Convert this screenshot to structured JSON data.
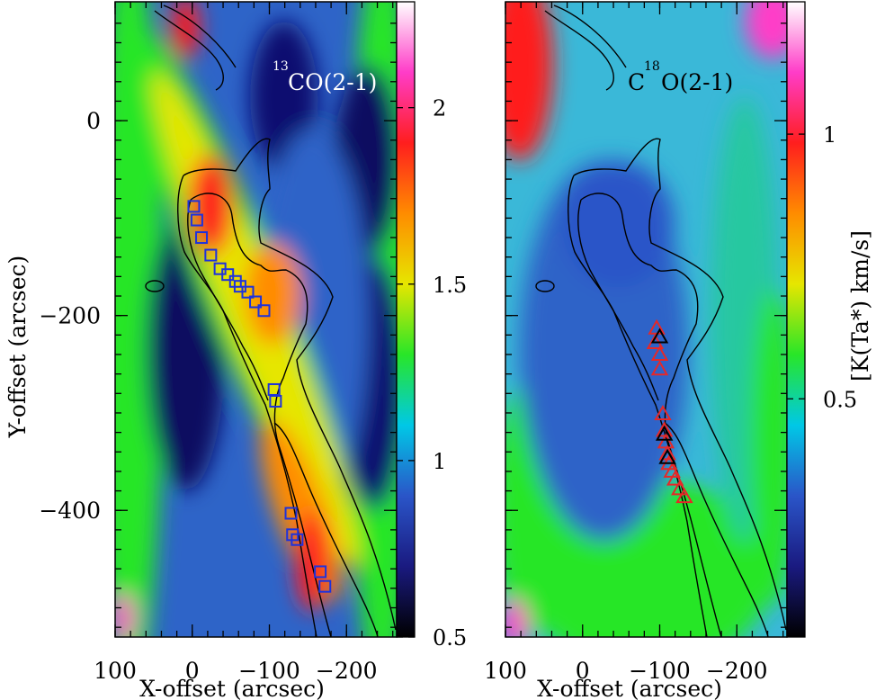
{
  "chart_data": [
    {
      "type": "heatmap",
      "title": "13CO(2-1)",
      "title_main": "CO(2-1)",
      "title_sup": "13",
      "xlabel": "X-offset (arcsec)",
      "ylabel": "Y-offset (arcsec)",
      "xlim": [
        100,
        -265
      ],
      "ylim": [
        -530,
        122
      ],
      "x_ticks": [
        100,
        0,
        -100,
        -200
      ],
      "x_tick_labels": [
        "100",
        "0",
        "−100",
        "−200"
      ],
      "y_ticks": [
        0,
        -200,
        -400
      ],
      "y_tick_labels": [
        "0",
        "−200",
        "−400"
      ],
      "colorbar": {
        "range": [
          0.5,
          2.3
        ],
        "ticks": [
          0.5,
          1,
          1.5,
          2
        ],
        "tick_labels": [
          "0.5",
          "1",
          "1.5",
          "2"
        ],
        "label": ""
      },
      "color_stops": [
        "#000000",
        "#1a1a80",
        "#2a55c8",
        "#00c8e6",
        "#28e628",
        "#e6e600",
        "#ff8c00",
        "#ff1e1e",
        "#ff3cc8",
        "#ffffff"
      ],
      "markers": {
        "symbol": "square",
        "color": "#1e32dc",
        "points": [
          [
            -2,
            -88
          ],
          [
            -6,
            -102
          ],
          [
            -12,
            -120
          ],
          [
            -24,
            -138
          ],
          [
            -36,
            -152
          ],
          [
            -46,
            -158
          ],
          [
            -56,
            -165
          ],
          [
            -62,
            -170
          ],
          [
            -72,
            -176
          ],
          [
            -82,
            -186
          ],
          [
            -93,
            -195
          ],
          [
            -106,
            -276
          ],
          [
            -108,
            -288
          ],
          [
            -128,
            -403
          ],
          [
            -130,
            -425
          ],
          [
            -136,
            -430
          ],
          [
            -166,
            -463
          ],
          [
            -172,
            -478
          ]
        ]
      }
    },
    {
      "type": "heatmap",
      "title": "C18O(2-1)",
      "title_main_a": "C",
      "title_sup": "18",
      "title_main_b": "O(2-1)",
      "xlabel": "X-offset (arcsec)",
      "ylabel": "",
      "xlim": [
        100,
        -265
      ],
      "ylim": [
        -530,
        122
      ],
      "x_ticks": [
        100,
        0,
        -100,
        -200
      ],
      "x_tick_labels": [
        "100",
        "0",
        "−100",
        "−200"
      ],
      "y_ticks": [
        0,
        -200,
        -400
      ],
      "colorbar": {
        "range": [
          0.05,
          1.25
        ],
        "ticks": [
          0.5,
          1
        ],
        "tick_labels": [
          "0.5",
          "1"
        ],
        "label": "[K(Ta*) km/s]"
      },
      "color_stops": [
        "#000000",
        "#1a1a80",
        "#2a55c8",
        "#00c8e6",
        "#28e628",
        "#e6e600",
        "#ff8c00",
        "#ff1e1e",
        "#ff3cc8",
        "#ffffff"
      ],
      "markers": {
        "symbol": "triangle",
        "color": "#e62828",
        "highlight_color": "#000000",
        "points": [
          [
            -96,
            -213
          ],
          [
            -94,
            -228
          ],
          [
            -100,
            -240
          ],
          [
            -100,
            -255
          ],
          [
            -104,
            -301
          ],
          [
            -106,
            -318
          ],
          [
            -108,
            -330
          ],
          [
            -110,
            -342
          ],
          [
            -112,
            -352
          ],
          [
            -116,
            -360
          ],
          [
            -120,
            -368
          ],
          [
            -126,
            -378
          ],
          [
            -132,
            -386
          ]
        ],
        "highlight_points": [
          [
            -100,
            -222
          ],
          [
            -106,
            -322
          ],
          [
            -110,
            -346
          ]
        ]
      }
    }
  ]
}
